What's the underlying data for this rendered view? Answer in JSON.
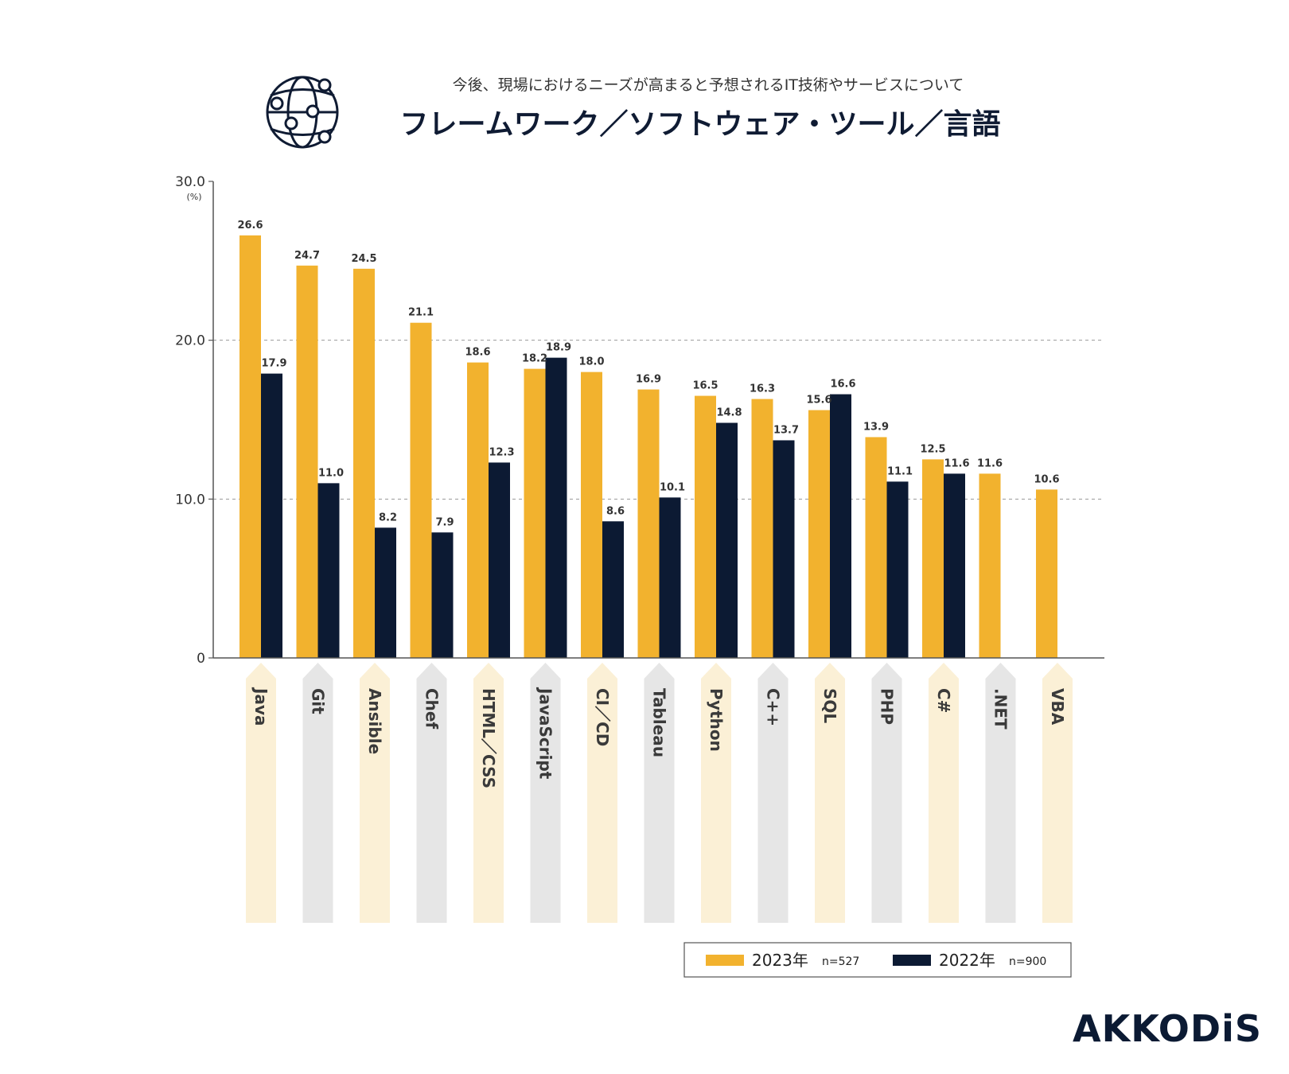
{
  "header": {
    "subtitle": "今後、現場におけるニーズが高まると予想されるIT技術やサービスについて",
    "title": "フレームワーク／ソフトウェア・ツール／言語"
  },
  "brand": {
    "logo_text": "AKKODiS"
  },
  "colors": {
    "series_2023": "#f2b22e",
    "series_2022": "#0c1a33",
    "band_2023": "#fbf0d6",
    "band_2022": "#e6e6e6"
  },
  "legend": [
    {
      "label": "2023年",
      "n": "n=527"
    },
    {
      "label": "2022年",
      "n": "n=900"
    }
  ],
  "chart_data": {
    "type": "bar",
    "categories": [
      "Java",
      "Git",
      "Ansible",
      "Chef",
      "HTML／CSS",
      "JavaScript",
      "CI／CD",
      "Tableau",
      "Python",
      "C++",
      "SQL",
      "PHP",
      "C#",
      ".NET",
      "VBA"
    ],
    "series": [
      {
        "name": "2023年",
        "values": [
          26.6,
          24.7,
          24.5,
          21.1,
          18.6,
          18.2,
          18.0,
          16.9,
          16.5,
          16.3,
          15.6,
          13.9,
          12.5,
          11.6,
          10.6
        ]
      },
      {
        "name": "2022年",
        "values": [
          17.9,
          11.0,
          8.2,
          7.9,
          12.3,
          18.9,
          8.6,
          10.1,
          14.8,
          13.7,
          16.6,
          11.1,
          11.6,
          null,
          null
        ]
      }
    ],
    "yticks": [
      "0",
      "10.0",
      "20.0",
      "30.0"
    ],
    "ylabel": "(%)",
    "ylim": [
      0,
      30
    ],
    "grid": true,
    "legend_position": "bottom-right"
  }
}
